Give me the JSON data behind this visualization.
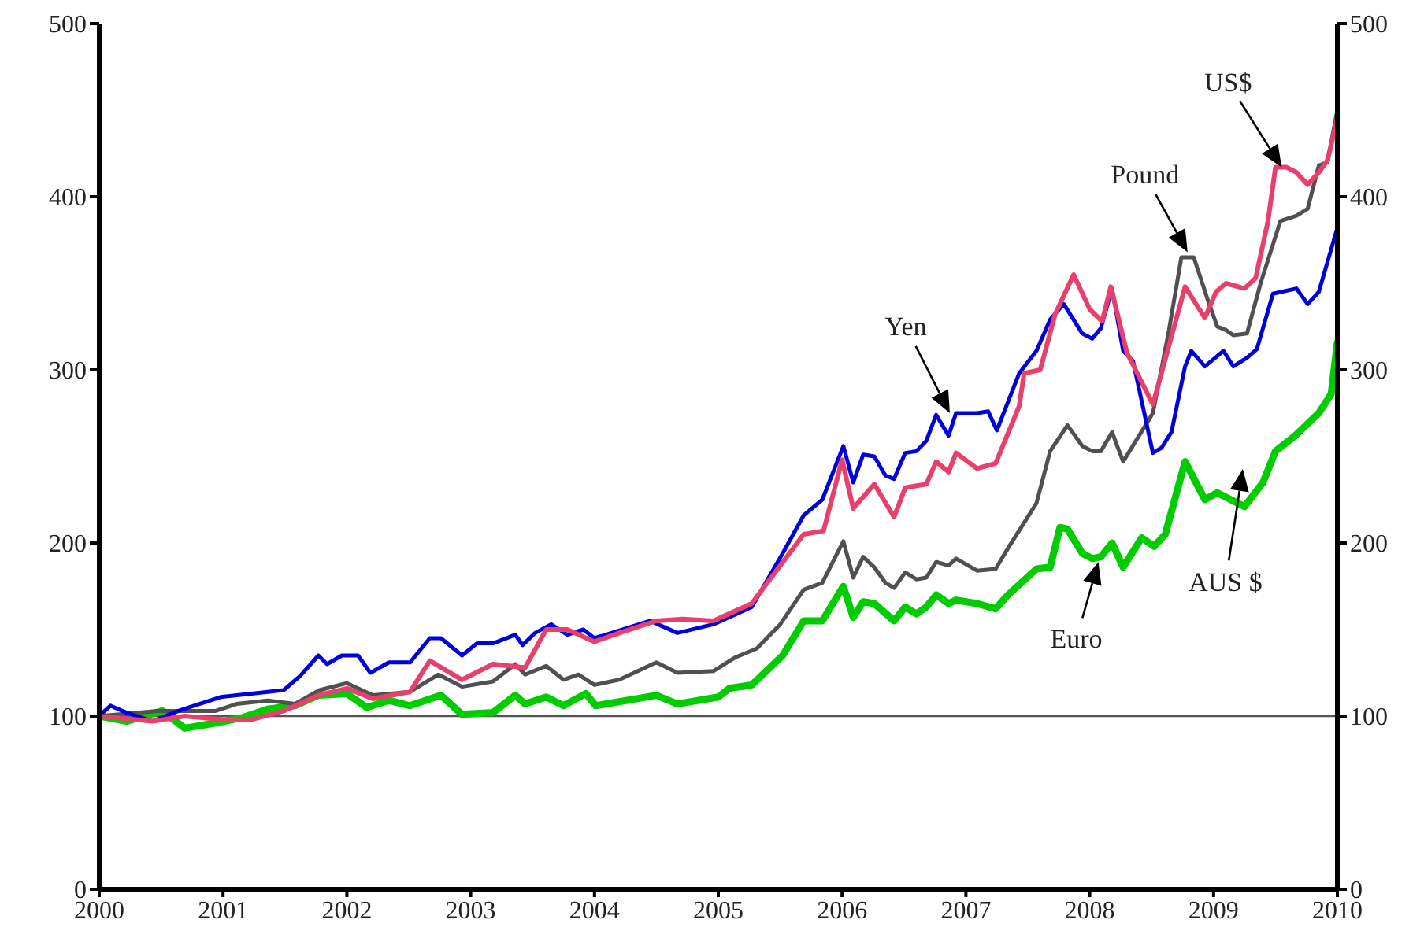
{
  "chart_data": {
    "type": "line",
    "xlim": [
      2000,
      2010
    ],
    "xticks": [
      2000,
      2001,
      2002,
      2003,
      2004,
      2005,
      2006,
      2007,
      2008,
      2009,
      2010
    ],
    "ylim": [
      0,
      500
    ],
    "yticks": [
      0,
      100,
      200,
      300,
      400,
      500
    ],
    "y2lim": [
      0,
      500
    ],
    "y2ticks": [
      0,
      100,
      200,
      300,
      400,
      500
    ],
    "marker": "none",
    "line_style": "solid",
    "ref_lines": [
      {
        "axis": "y",
        "value": 100,
        "color": "#555555"
      }
    ],
    "annotations": [
      {
        "text": "US$",
        "x": 2009.55,
        "y": 417
      },
      {
        "text": "Pound",
        "x": 2008.79,
        "y": 368
      },
      {
        "text": "Yen",
        "x": 2006.87,
        "y": 275
      },
      "AUS $",
      {
        "text": "Euro",
        "x": 2008.07,
        "y": 189
      }
    ],
    "series": [
      {
        "color": "#00cc00",
        "x": [
          2000,
          2000.22,
          2000.51,
          2000.69,
          2000.94,
          2001.15,
          2001.36,
          2001.58,
          2001.77,
          2002.0,
          2002.16,
          2002.34,
          2002.51,
          2002.76,
          2002.93,
          2003.18,
          2003.36,
          2003.44,
          2003.61,
          2003.75,
          2003.93,
          2004.01,
          2004.5,
          2004.67,
          2005.0,
          2005.09,
          2005.27,
          2005.52,
          2005.69,
          2005.84,
          2006.01,
          2006.09,
          2006.17,
          2006.26,
          2006.42,
          2006.51,
          2006.6,
          2006.68,
          2006.76,
          2006.86,
          2006.92,
          2007.09,
          2007.24,
          2007.34,
          2007.57,
          2007.68,
          2007.76,
          2007.82,
          2007.94,
          2008.02,
          2008.09,
          2008.18,
          2008.27,
          2008.42,
          2008.52,
          2008.61,
          2008.77,
          2008.93,
          2009.03,
          2009.25,
          2009.4,
          2009.5,
          2009.66,
          2009.85,
          2009.95,
          2010
        ],
        "values": [
          100,
          97,
          103,
          93,
          96,
          99,
          104,
          106,
          112,
          113,
          105,
          109,
          106,
          112,
          101,
          102,
          112,
          107,
          111,
          106,
          113,
          106,
          112,
          107,
          111,
          116,
          118,
          135,
          155,
          155,
          175,
          157,
          166,
          165,
          155,
          163,
          159,
          163,
          170,
          165,
          167,
          165,
          162,
          170,
          185,
          186,
          209,
          208,
          194,
          191,
          192,
          200,
          186,
          203,
          198,
          205,
          247,
          225,
          229,
          221,
          235,
          253,
          262,
          275,
          286,
          316
        ]
      },
      {
        "color": "#505050",
        "x": [
          2000,
          2000.47,
          2000.94,
          2001.11,
          2001.36,
          2001.58,
          2001.78,
          2002.0,
          2002.21,
          2002.51,
          2002.74,
          2002.93,
          2003.18,
          2003.36,
          2003.44,
          2003.61,
          2003.75,
          2003.87,
          2004.0,
          2004.2,
          2004.5,
          2004.67,
          2004.96,
          2005.14,
          2005.31,
          2005.5,
          2005.69,
          2005.84,
          2006.01,
          2006.09,
          2006.17,
          2006.26,
          2006.35,
          2006.42,
          2006.51,
          2006.6,
          2006.68,
          2006.76,
          2006.86,
          2006.92,
          2007.09,
          2007.24,
          2007.34,
          2007.57,
          2007.68,
          2007.82,
          2007.94,
          2008.02,
          2008.09,
          2008.18,
          2008.27,
          2008.51,
          2008.64,
          2008.74,
          2008.84,
          2008.96,
          2009.03,
          2009.1,
          2009.16,
          2009.27,
          2009.38,
          2009.54,
          2009.67,
          2009.76,
          2009.85,
          2009.92,
          2010
        ],
        "values": [
          100,
          103,
          103,
          107,
          109,
          107,
          115,
          119,
          112,
          114,
          124,
          117,
          120,
          130,
          124,
          129,
          121,
          124,
          118,
          121,
          131,
          125,
          126,
          134,
          139,
          153,
          173,
          177,
          201,
          180,
          192,
          186,
          177,
          174,
          183,
          179,
          180,
          189,
          187,
          191,
          184,
          185,
          197,
          223,
          253,
          268,
          256,
          253,
          253,
          264,
          247,
          275,
          323,
          365,
          365,
          339,
          325,
          323,
          320,
          321,
          350,
          386,
          389,
          393,
          418,
          420,
          450
        ]
      },
      {
        "color": "#0000dd",
        "x": [
          2000,
          2000.09,
          2000.22,
          2000.43,
          2000.64,
          2000.98,
          2001.23,
          2001.49,
          2001.62,
          2001.77,
          2001.84,
          2001.96,
          2002.09,
          2002.19,
          2002.34,
          2002.51,
          2002.67,
          2002.76,
          2002.93,
          2003.05,
          2003.18,
          2003.36,
          2003.42,
          2003.52,
          2003.65,
          2003.78,
          2003.91,
          2004.0,
          2004.45,
          2004.67,
          2004.96,
          2005.27,
          2005.52,
          2005.69,
          2005.84,
          2006.01,
          2006.09,
          2006.17,
          2006.26,
          2006.35,
          2006.42,
          2006.51,
          2006.6,
          2006.68,
          2006.76,
          2006.86,
          2006.92,
          2007.09,
          2007.18,
          2007.25,
          2007.43,
          2007.57,
          2007.68,
          2007.79,
          2007.94,
          2008.02,
          2008.09,
          2008.18,
          2008.27,
          2008.35,
          2008.51,
          2008.58,
          2008.66,
          2008.77,
          2008.82,
          2008.93,
          2009.08,
          2009.16,
          2009.27,
          2009.35,
          2009.48,
          2009.67,
          2009.76,
          2009.85,
          2010
        ],
        "values": [
          100,
          106,
          102,
          97,
          103,
          111,
          113,
          115,
          123,
          135,
          130,
          135,
          135,
          125,
          131,
          131,
          145,
          145,
          135,
          142,
          142,
          147,
          141,
          148,
          153,
          147,
          150,
          145,
          155,
          148,
          153,
          163,
          194,
          216,
          225,
          256,
          235,
          251,
          250,
          239,
          237,
          252,
          253,
          259,
          274,
          262,
          275,
          275,
          276,
          265,
          298,
          311,
          329,
          338,
          321,
          318,
          324,
          347,
          311,
          305,
          252,
          255,
          264,
          302,
          311,
          302,
          311,
          302,
          307,
          312,
          344,
          347,
          338,
          345,
          382
        ]
      },
      {
        "color": "#e8406a",
        "x": [
          2000,
          2000.43,
          2000.69,
          2001.0,
          2001.23,
          2001.49,
          2001.77,
          2002.0,
          2002.21,
          2002.51,
          2002.67,
          2002.93,
          2003.18,
          2003.44,
          2003.61,
          2003.78,
          2004.0,
          2004.2,
          2004.5,
          2004.71,
          2004.96,
          2005.27,
          2005.69,
          2005.85,
          2006.0,
          2006.09,
          2006.26,
          2006.42,
          2006.51,
          2006.68,
          2006.76,
          2006.86,
          2006.92,
          2007.09,
          2007.24,
          2007.43,
          2007.47,
          2007.6,
          2007.72,
          2007.87,
          2008.0,
          2008.1,
          2008.17,
          2008.3,
          2008.51,
          2008.77,
          2008.93,
          2009.02,
          2009.1,
          2009.25,
          2009.34,
          2009.44,
          2009.5,
          2009.59,
          2009.67,
          2009.76,
          2009.85,
          2009.92,
          2010
        ],
        "values": [
          100,
          97,
          100,
          98,
          98,
          103,
          112,
          116,
          110,
          114,
          132,
          121,
          130,
          128,
          150,
          150,
          143,
          148,
          155,
          156,
          155,
          165,
          205,
          207,
          248,
          220,
          234,
          215,
          232,
          234,
          247,
          241,
          252,
          243,
          246,
          279,
          298,
          300,
          332,
          355,
          335,
          328,
          348,
          310,
          280,
          348,
          330,
          345,
          350,
          347,
          353,
          386,
          417,
          417,
          414,
          407,
          414,
          421,
          445
        ]
      }
    ]
  }
}
